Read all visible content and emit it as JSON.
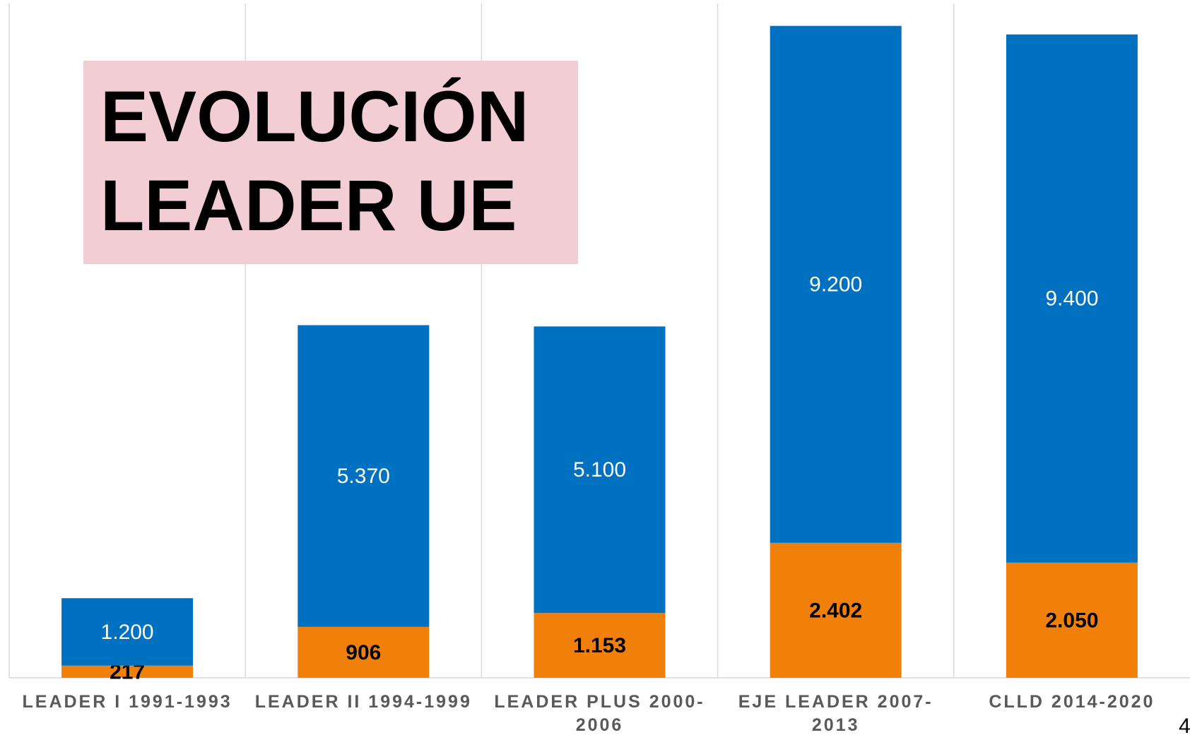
{
  "chart_data": {
    "type": "stacked_bar",
    "title": "EVOLUCIÓN LEADER UE",
    "categories": [
      "LEADER I 1991-1993",
      "LEADER II 1994-1999",
      "LEADER PLUS 2000-2006",
      "EJE LEADER 2007-2013",
      "CLLD 2014-2020"
    ],
    "series": [
      {
        "color": "#f0800a",
        "values": [
          217,
          906,
          1153,
          2402,
          2050
        ],
        "value_labels": [
          "217",
          "906",
          "1.153",
          "2.402",
          "2.050"
        ]
      },
      {
        "color": "#0070c0",
        "values": [
          1200,
          5370,
          5100,
          9200,
          9400
        ],
        "value_labels": [
          "1.200",
          "5.370",
          "5.100",
          "9.200",
          "9.400"
        ]
      }
    ],
    "ylim": [
      0,
      12000
    ],
    "page_number": "4"
  }
}
